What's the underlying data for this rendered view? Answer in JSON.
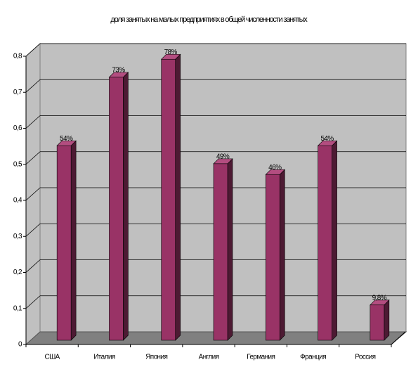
{
  "chart_data": {
    "type": "bar3d",
    "title": "доля занятых на малых предприятиях в общей численности занятых",
    "categories": [
      "США",
      "Италия",
      "Япония",
      "Англия",
      "Германия",
      "Франция",
      "Россия"
    ],
    "values": [
      0.54,
      0.73,
      0.78,
      0.49,
      0.46,
      0.54,
      0.098
    ],
    "value_labels": [
      "54%",
      "73%",
      "78%",
      "49%",
      "46%",
      "54%",
      "9,8%"
    ],
    "color": "#993366",
    "ylim": [
      0,
      0.8
    ],
    "yticks": [
      0,
      {
        "value": 0.1,
        "label": "0,1"
      },
      {
        "value": 0.2,
        "label": "0,2"
      },
      {
        "value": 0.3,
        "label": "0,3"
      },
      {
        "value": 0.4,
        "label": "0,4"
      },
      {
        "value": 0.5,
        "label": "0,5"
      },
      {
        "value": 0.6,
        "label": "0,6"
      },
      {
        "value": 0.7,
        "label": "0,7"
      },
      {
        "value": 0.8,
        "label": "0,8"
      }
    ],
    "grid": true
  }
}
